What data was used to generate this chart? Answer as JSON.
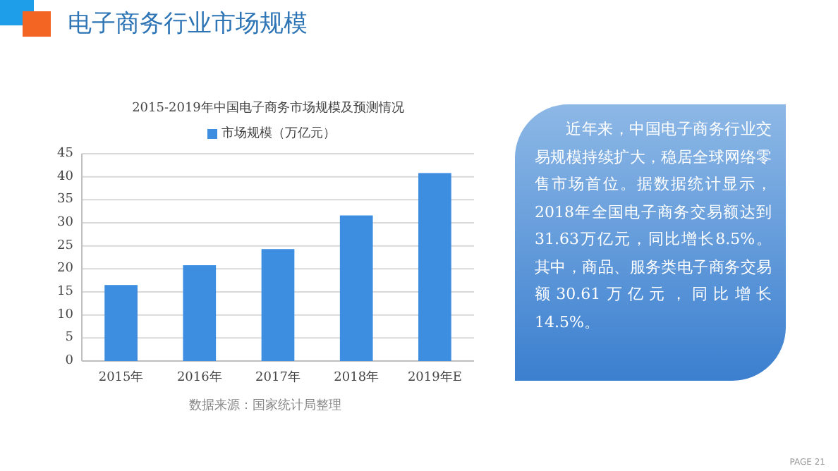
{
  "chart_data": {
    "type": "bar",
    "title": "电子商务行业市场规模",
    "subtitle": "2015-2019年中国电子商务市场规模及预测情况",
    "categories": [
      "2015年",
      "2016年",
      "2017年",
      "2018年",
      "2019年E"
    ],
    "series": [
      {
        "name": "市场规模（万亿元）",
        "color": "#3d8ee0",
        "values": [
          16.5,
          20.8,
          24.3,
          31.6,
          40.8
        ]
      }
    ],
    "ylim": [
      0,
      45
    ],
    "yticks": [
      0,
      5,
      10,
      15,
      20,
      25,
      30,
      35,
      40,
      45
    ],
    "grid": "y",
    "legend": "top",
    "annotations": [
      "数据来源：国家统计局整理",
      "近年来，中国电子商务行业交易规模持续扩大，稳居全球网络零售市场首位。据数据统计显示，2018年全国电子商务交易额达到31.63万亿元，同比增长8.5%。其中，商品、服务类电子商务交易额30.61万亿元，同比增长14.5%。",
      "PAGE 21"
    ]
  }
}
